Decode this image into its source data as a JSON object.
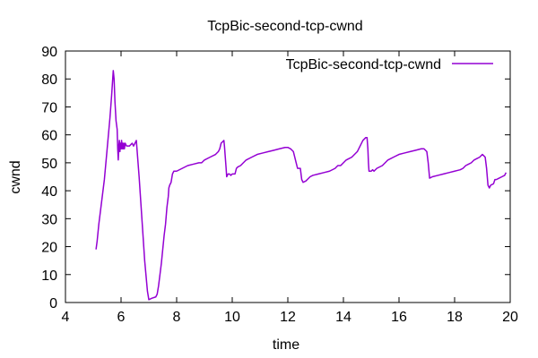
{
  "chart_data": {
    "type": "line",
    "title": "TcpBic-second-tcp-cwnd",
    "xlabel": "time",
    "ylabel": "cwnd",
    "xlim": [
      4,
      20
    ],
    "ylim": [
      0,
      90
    ],
    "xticks": [
      4,
      6,
      8,
      10,
      12,
      14,
      16,
      18,
      20
    ],
    "yticks": [
      0,
      10,
      20,
      30,
      40,
      50,
      60,
      70,
      80,
      90
    ],
    "grid": false,
    "legend_position": "top-right",
    "series": [
      {
        "name": "TcpBic-second-tcp-cwnd",
        "color": "#9400d3",
        "points": [
          [
            5.1,
            19
          ],
          [
            5.14,
            22
          ],
          [
            5.2,
            28
          ],
          [
            5.3,
            36
          ],
          [
            5.4,
            44
          ],
          [
            5.5,
            55
          ],
          [
            5.6,
            66
          ],
          [
            5.66,
            74
          ],
          [
            5.7,
            80
          ],
          [
            5.72,
            83
          ],
          [
            5.75,
            80
          ],
          [
            5.78,
            72
          ],
          [
            5.82,
            65
          ],
          [
            5.86,
            62
          ],
          [
            5.88,
            55
          ],
          [
            5.9,
            51
          ],
          [
            5.92,
            56
          ],
          [
            5.94,
            58
          ],
          [
            5.96,
            54
          ],
          [
            5.98,
            57
          ],
          [
            6.0,
            55
          ],
          [
            6.02,
            58
          ],
          [
            6.04,
            55
          ],
          [
            6.06,
            57
          ],
          [
            6.08,
            55
          ],
          [
            6.1,
            57
          ],
          [
            6.12,
            55
          ],
          [
            6.15,
            57
          ],
          [
            6.2,
            56
          ],
          [
            6.3,
            56
          ],
          [
            6.4,
            57
          ],
          [
            6.45,
            56
          ],
          [
            6.5,
            57
          ],
          [
            6.55,
            58
          ],
          [
            6.65,
            45
          ],
          [
            6.75,
            30
          ],
          [
            6.85,
            15
          ],
          [
            6.95,
            4
          ],
          [
            7.0,
            1
          ],
          [
            7.1,
            1.5
          ],
          [
            7.25,
            2
          ],
          [
            7.3,
            3
          ],
          [
            7.35,
            6
          ],
          [
            7.4,
            10
          ],
          [
            7.45,
            14
          ],
          [
            7.5,
            19
          ],
          [
            7.55,
            24
          ],
          [
            7.6,
            28
          ],
          [
            7.65,
            34
          ],
          [
            7.7,
            38
          ],
          [
            7.72,
            41
          ],
          [
            7.75,
            42
          ],
          [
            7.8,
            43
          ],
          [
            7.85,
            46
          ],
          [
            7.9,
            47
          ],
          [
            8.0,
            47
          ],
          [
            8.2,
            48
          ],
          [
            8.4,
            49
          ],
          [
            8.6,
            49.5
          ],
          [
            8.8,
            50
          ],
          [
            8.9,
            50
          ],
          [
            9.0,
            51
          ],
          [
            9.2,
            52
          ],
          [
            9.4,
            53
          ],
          [
            9.5,
            54
          ],
          [
            9.55,
            55
          ],
          [
            9.6,
            57
          ],
          [
            9.65,
            57.5
          ],
          [
            9.7,
            58
          ],
          [
            9.72,
            56
          ],
          [
            9.75,
            52
          ],
          [
            9.78,
            48
          ],
          [
            9.8,
            45
          ],
          [
            9.85,
            46
          ],
          [
            9.9,
            46
          ],
          [
            9.95,
            45.5
          ],
          [
            10.0,
            46
          ],
          [
            10.1,
            46
          ],
          [
            10.15,
            48
          ],
          [
            10.2,
            48.5
          ],
          [
            10.3,
            49
          ],
          [
            10.4,
            50
          ],
          [
            10.5,
            51
          ],
          [
            10.7,
            52
          ],
          [
            10.9,
            53
          ],
          [
            11.1,
            53.5
          ],
          [
            11.3,
            54
          ],
          [
            11.5,
            54.5
          ],
          [
            11.7,
            55
          ],
          [
            11.9,
            55.5
          ],
          [
            12.0,
            55.5
          ],
          [
            12.1,
            55
          ],
          [
            12.2,
            54
          ],
          [
            12.3,
            50
          ],
          [
            12.35,
            48
          ],
          [
            12.45,
            48
          ],
          [
            12.5,
            44
          ],
          [
            12.55,
            43
          ],
          [
            12.65,
            43.5
          ],
          [
            12.7,
            44
          ],
          [
            12.8,
            45
          ],
          [
            12.9,
            45.5
          ],
          [
            13.1,
            46
          ],
          [
            13.3,
            46.5
          ],
          [
            13.5,
            47
          ],
          [
            13.7,
            48
          ],
          [
            13.8,
            49
          ],
          [
            13.9,
            49
          ],
          [
            14.0,
            50
          ],
          [
            14.1,
            51
          ],
          [
            14.2,
            51.5
          ],
          [
            14.3,
            52
          ],
          [
            14.4,
            53
          ],
          [
            14.5,
            54
          ],
          [
            14.6,
            56
          ],
          [
            14.7,
            58
          ],
          [
            14.8,
            59
          ],
          [
            14.85,
            59
          ],
          [
            14.88,
            55
          ],
          [
            14.9,
            50
          ],
          [
            14.92,
            47
          ],
          [
            15.0,
            47
          ],
          [
            15.05,
            47.5
          ],
          [
            15.1,
            47
          ],
          [
            15.2,
            48
          ],
          [
            15.4,
            49
          ],
          [
            15.5,
            50
          ],
          [
            15.6,
            51
          ],
          [
            15.8,
            52
          ],
          [
            16.0,
            53
          ],
          [
            16.2,
            53.5
          ],
          [
            16.4,
            54
          ],
          [
            16.6,
            54.5
          ],
          [
            16.8,
            55
          ],
          [
            16.9,
            55
          ],
          [
            17.0,
            54
          ],
          [
            17.05,
            50
          ],
          [
            17.1,
            44.5
          ],
          [
            17.2,
            45
          ],
          [
            17.4,
            45.5
          ],
          [
            17.6,
            46
          ],
          [
            17.8,
            46.5
          ],
          [
            18.0,
            47
          ],
          [
            18.2,
            47.5
          ],
          [
            18.3,
            48
          ],
          [
            18.4,
            49
          ],
          [
            18.5,
            49.5
          ],
          [
            18.6,
            50
          ],
          [
            18.7,
            51
          ],
          [
            18.8,
            51.5
          ],
          [
            18.9,
            52
          ],
          [
            19.0,
            53
          ],
          [
            19.05,
            52.5
          ],
          [
            19.1,
            52
          ],
          [
            19.15,
            48
          ],
          [
            19.2,
            42
          ],
          [
            19.25,
            41
          ],
          [
            19.3,
            42
          ],
          [
            19.4,
            42.5
          ],
          [
            19.45,
            44
          ],
          [
            19.5,
            44
          ],
          [
            19.6,
            44.5
          ],
          [
            19.7,
            45
          ],
          [
            19.8,
            45.5
          ],
          [
            19.85,
            46.5
          ]
        ]
      }
    ]
  }
}
